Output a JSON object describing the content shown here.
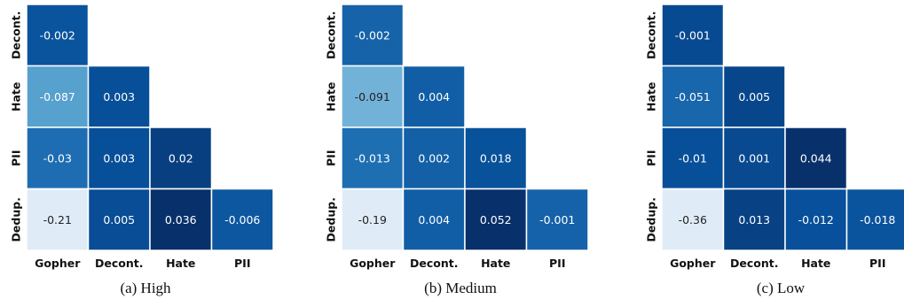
{
  "chart_data": [
    {
      "type": "heatmap",
      "title": "(a) High",
      "row_labels": [
        "Decont.",
        "Hate",
        "PII",
        "Dedup."
      ],
      "col_labels": [
        "Gopher",
        "Decont.",
        "Hate",
        "PII"
      ],
      "cells": [
        {
          "row": 0,
          "col": 0,
          "value": -0.002,
          "label": "-0.002"
        },
        {
          "row": 1,
          "col": 0,
          "value": -0.087,
          "label": "-0.087"
        },
        {
          "row": 1,
          "col": 1,
          "value": 0.003,
          "label": "0.003"
        },
        {
          "row": 2,
          "col": 0,
          "value": -0.03,
          "label": "-0.03"
        },
        {
          "row": 2,
          "col": 1,
          "value": 0.003,
          "label": "0.003"
        },
        {
          "row": 2,
          "col": 2,
          "value": 0.02,
          "label": "0.02"
        },
        {
          "row": 3,
          "col": 0,
          "value": -0.21,
          "label": "-0.21"
        },
        {
          "row": 3,
          "col": 1,
          "value": 0.005,
          "label": "0.005"
        },
        {
          "row": 3,
          "col": 2,
          "value": 0.036,
          "label": "0.036"
        },
        {
          "row": 3,
          "col": 3,
          "value": -0.006,
          "label": "-0.006"
        }
      ],
      "colormap": "Blues"
    },
    {
      "type": "heatmap",
      "title": "(b) Medium",
      "row_labels": [
        "Decont.",
        "Hate",
        "PII",
        "Dedup."
      ],
      "col_labels": [
        "Gopher",
        "Decont.",
        "Hate",
        "PII"
      ],
      "cells": [
        {
          "row": 0,
          "col": 0,
          "value": -0.002,
          "label": "-0.002"
        },
        {
          "row": 1,
          "col": 0,
          "value": -0.091,
          "label": "-0.091"
        },
        {
          "row": 1,
          "col": 1,
          "value": 0.004,
          "label": "0.004"
        },
        {
          "row": 2,
          "col": 0,
          "value": -0.013,
          "label": "-0.013"
        },
        {
          "row": 2,
          "col": 1,
          "value": 0.002,
          "label": "0.002"
        },
        {
          "row": 2,
          "col": 2,
          "value": 0.018,
          "label": "0.018"
        },
        {
          "row": 3,
          "col": 0,
          "value": -0.19,
          "label": "-0.19"
        },
        {
          "row": 3,
          "col": 1,
          "value": 0.004,
          "label": "0.004"
        },
        {
          "row": 3,
          "col": 2,
          "value": 0.052,
          "label": "0.052"
        },
        {
          "row": 3,
          "col": 3,
          "value": -0.001,
          "label": "-0.001"
        }
      ],
      "colormap": "Blues"
    },
    {
      "type": "heatmap",
      "title": "(c) Low",
      "row_labels": [
        "Decont.",
        "Hate",
        "PII",
        "Dedup."
      ],
      "col_labels": [
        "Gopher",
        "Decont.",
        "Hate",
        "PII"
      ],
      "cells": [
        {
          "row": 0,
          "col": 0,
          "value": -0.001,
          "label": "-0.001"
        },
        {
          "row": 1,
          "col": 0,
          "value": -0.051,
          "label": "-0.051"
        },
        {
          "row": 1,
          "col": 1,
          "value": 0.005,
          "label": "0.005"
        },
        {
          "row": 2,
          "col": 0,
          "value": -0.01,
          "label": "-0.01"
        },
        {
          "row": 2,
          "col": 1,
          "value": 0.001,
          "label": "0.001"
        },
        {
          "row": 2,
          "col": 2,
          "value": 0.044,
          "label": "0.044"
        },
        {
          "row": 3,
          "col": 0,
          "value": -0.36,
          "label": "-0.36"
        },
        {
          "row": 3,
          "col": 1,
          "value": 0.013,
          "label": "0.013"
        },
        {
          "row": 3,
          "col": 2,
          "value": -0.012,
          "label": "-0.012"
        },
        {
          "row": 3,
          "col": 3,
          "value": -0.018,
          "label": "-0.018"
        }
      ],
      "colormap": "Blues"
    }
  ]
}
